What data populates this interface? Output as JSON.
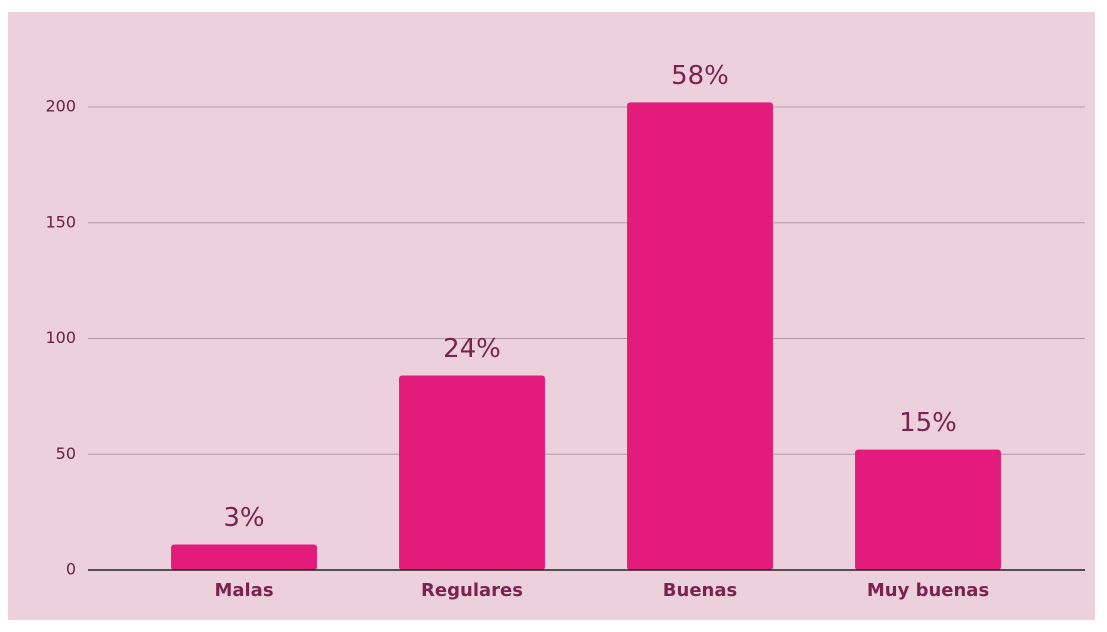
{
  "chart_data": {
    "type": "bar",
    "categories": [
      "Malas",
      "Regulares",
      "Buenas",
      "Muy buenas"
    ],
    "values": [
      11,
      84,
      202,
      52
    ],
    "percent_labels": [
      "3%",
      "24%",
      "58%",
      "15%"
    ],
    "color": "#e31c7c",
    "ylim": [
      0,
      200
    ],
    "yticks": [
      0,
      50,
      100,
      150,
      200
    ],
    "grid": true
  }
}
